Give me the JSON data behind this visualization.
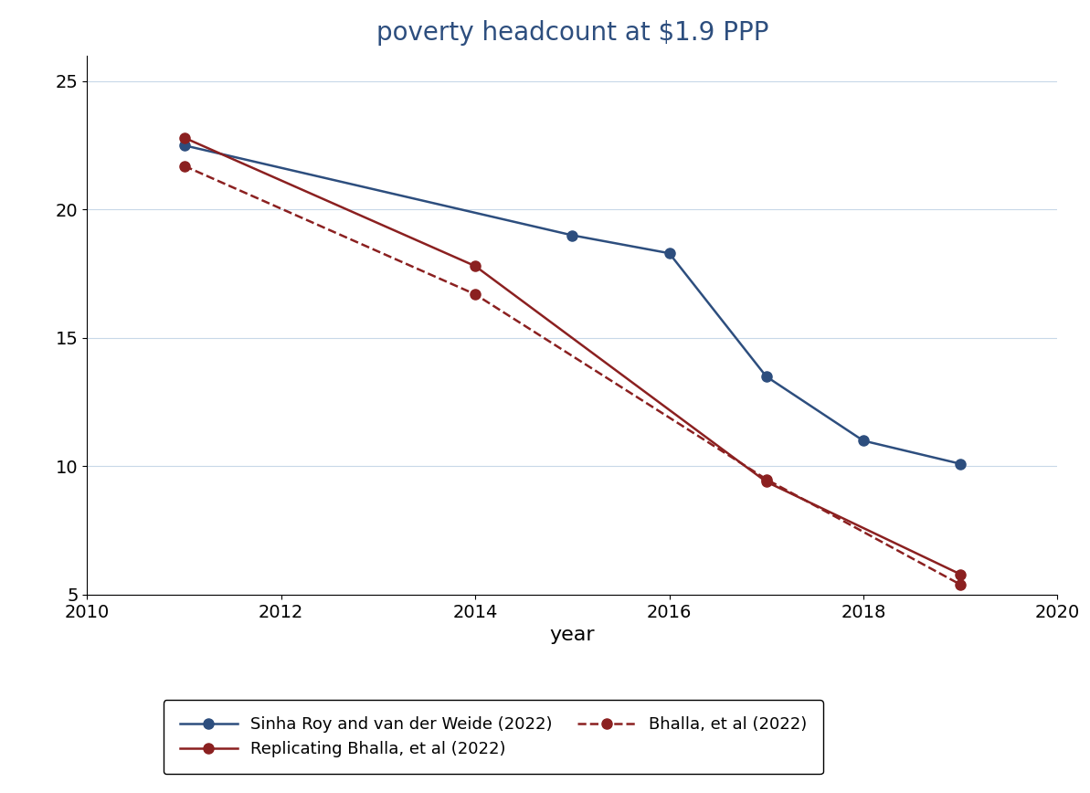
{
  "title": "poverty headcount at $1.9 PPP",
  "xlabel": "year",
  "ylabel": "",
  "xlim": [
    2010,
    2020
  ],
  "ylim": [
    5,
    26
  ],
  "yticks": [
    5,
    10,
    15,
    20,
    25
  ],
  "xticks": [
    2010,
    2012,
    2014,
    2016,
    2018,
    2020
  ],
  "background_color": "#ffffff",
  "grid_color": "#c8d8e8",
  "series": [
    {
      "name": "Sinha Roy and van der Weide (2022)",
      "x": [
        2011,
        2015,
        2016,
        2017,
        2018,
        2019
      ],
      "y": [
        22.5,
        19.0,
        18.3,
        13.5,
        11.0,
        10.1
      ],
      "color": "#2d4e7e",
      "linestyle": "solid",
      "linewidth": 1.8,
      "marker": "o",
      "markersize": 8,
      "zorder": 3
    },
    {
      "name": "Replicating Bhalla, et al (2022)",
      "x": [
        2011,
        2014,
        2017,
        2019
      ],
      "y": [
        22.8,
        17.8,
        9.4,
        5.8
      ],
      "color": "#8b2020",
      "linestyle": "solid",
      "linewidth": 1.8,
      "marker": "o",
      "markersize": 8,
      "zorder": 3
    },
    {
      "name": "Bhalla, et al (2022)",
      "x": [
        2011,
        2014,
        2017,
        2019
      ],
      "y": [
        21.7,
        16.7,
        9.5,
        5.4
      ],
      "color": "#8b2020",
      "linestyle": "dashed",
      "linewidth": 1.8,
      "marker": "o",
      "markersize": 8,
      "zorder": 3
    }
  ],
  "title_color": "#2d4e7e",
  "title_fontsize": 20,
  "tick_fontsize": 14,
  "label_fontsize": 16,
  "legend_fontsize": 13
}
